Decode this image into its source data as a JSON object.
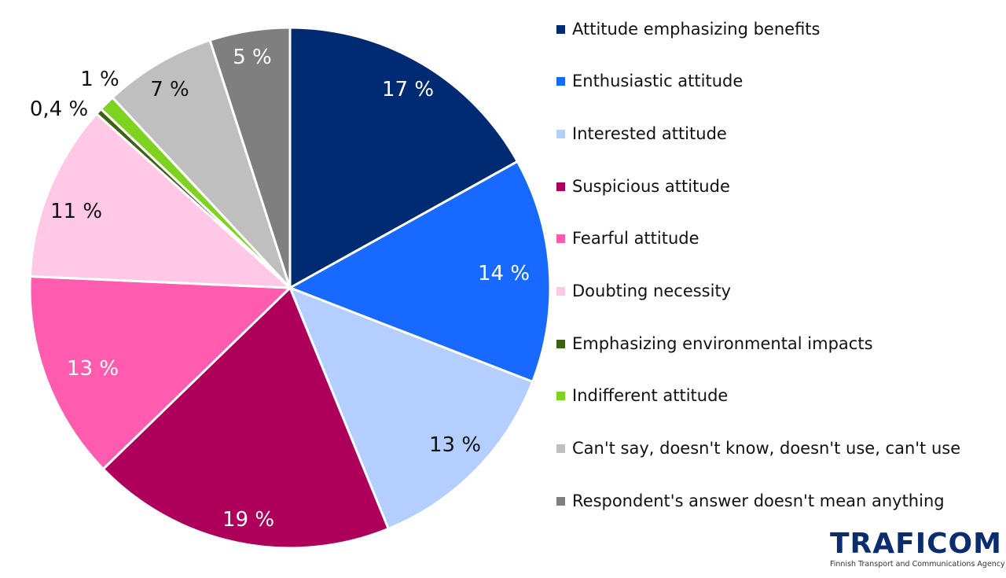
{
  "chart_data": {
    "type": "pie",
    "start": "top, clockwise",
    "legend_position": "right",
    "slices": [
      {
        "name": "Attitude emphasizing benefits",
        "value": 17,
        "label": "17 %",
        "color": "#002B73"
      },
      {
        "name": "Enthusiastic attitude",
        "value": 14,
        "label": "14 %",
        "color": "#1769FF"
      },
      {
        "name": "Interested attitude",
        "value": 13,
        "label": "13 %",
        "color": "#B3CEFF"
      },
      {
        "name": "Suspicious attitude",
        "value": 19,
        "label": "19 %",
        "color": "#AE005A"
      },
      {
        "name": "Fearful attitude",
        "value": 13,
        "label": "13 %",
        "color": "#FF5CB0"
      },
      {
        "name": "Doubting necessity",
        "value": 11,
        "label": "11 %",
        "color": "#FFC8E6"
      },
      {
        "name": "Emphasizing environmental impacts",
        "value": 0.4,
        "label": "0,4 %",
        "color": "#3D6212"
      },
      {
        "name": "Indifferent attitude",
        "value": 1,
        "label": "1 %",
        "color": "#7ED321"
      },
      {
        "name": "Can't say, doesn't know, doesn't use, can't use",
        "value": 7,
        "label": "7 %",
        "color": "#BFBFBF"
      },
      {
        "name": "Respondent's answer doesn't mean anything",
        "value": 5,
        "label": "5 %",
        "color": "#7F7F7F"
      }
    ]
  },
  "logo": {
    "name": "TRAFICOM",
    "tagline": "Finnish Transport and Communications Agency"
  }
}
